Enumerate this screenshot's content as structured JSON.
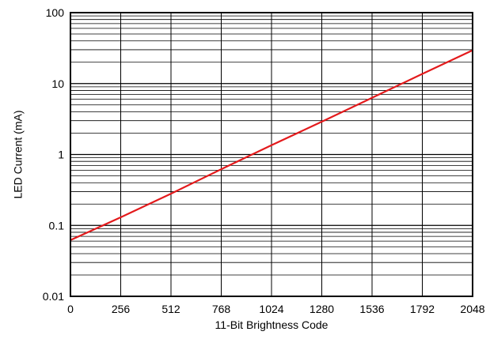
{
  "chart_data": {
    "type": "line",
    "title": "",
    "xlabel": "11-Bit Brightness Code",
    "ylabel": "LED Current (mA)",
    "xlim": [
      0,
      2048
    ],
    "ylim": [
      0.01,
      100
    ],
    "yscale": "log",
    "grid": true,
    "x_ticks": [
      0,
      256,
      512,
      768,
      1024,
      1280,
      1536,
      1792,
      2048
    ],
    "x_tick_labels": [
      "0",
      "256",
      "512",
      "768",
      "1024",
      "1280",
      "1536",
      "1792",
      "2048"
    ],
    "y_ticks": [
      0.01,
      0.1,
      1,
      10,
      100
    ],
    "y_tick_labels": [
      "0.01",
      "0.1",
      "1",
      "10",
      "100"
    ],
    "series": [
      {
        "color": "#e31a1c",
        "x": [
          0,
          256,
          512,
          768,
          1024,
          1280,
          1536,
          1792,
          2048
        ],
        "y": [
          0.062,
          0.13,
          0.28,
          0.62,
          1.35,
          2.9,
          6.3,
          13.7,
          29.5
        ]
      }
    ]
  }
}
